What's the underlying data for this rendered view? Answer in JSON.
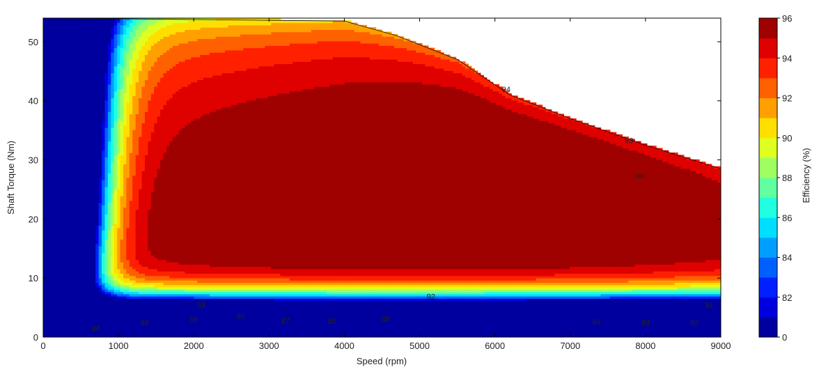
{
  "chart_data": {
    "type": "contour",
    "title": "",
    "xlabel": "Speed  (rpm)",
    "ylabel": "Shaft Torque (Nm)",
    "colorbar_label": "Efficiency (%)",
    "xlim": [
      0,
      9000
    ],
    "ylim": [
      0,
      54
    ],
    "x_ticks": [
      0,
      1000,
      2000,
      3000,
      4000,
      5000,
      6000,
      7000,
      8000,
      9000
    ],
    "y_ticks": [
      0,
      10,
      20,
      30,
      40,
      50
    ],
    "colorbar_ticks": [
      "0",
      "82",
      "84",
      "86",
      "88",
      "90",
      "92",
      "94",
      "96"
    ],
    "colormap": "jet",
    "max_torque_envelope": [
      [
        70,
        54
      ],
      [
        4000,
        53.5
      ],
      [
        4700,
        51
      ],
      [
        5500,
        47
      ],
      [
        6200,
        41
      ],
      [
        7000,
        37
      ],
      [
        8000,
        32.5
      ],
      [
        9000,
        28.5
      ]
    ],
    "efficiency_regions": [
      {
        "level": "94-96",
        "color": "#ff2200"
      },
      {
        "level": ">96",
        "color": "#a40000"
      }
    ],
    "contour_labels": [
      {
        "text": "84",
        "x": 700,
        "y": 1.5
      },
      {
        "text": "88",
        "x": 1350,
        "y": 2.5
      },
      {
        "text": "89",
        "x": 2000,
        "y": 3.0
      },
      {
        "text": "90",
        "x": 2620,
        "y": 3.6
      },
      {
        "text": "87",
        "x": 3220,
        "y": 2.8
      },
      {
        "text": "85",
        "x": 3830,
        "y": 2.7
      },
      {
        "text": "86",
        "x": 4550,
        "y": 3.1
      },
      {
        "text": "93",
        "x": 2100,
        "y": 5.5
      },
      {
        "text": "92",
        "x": 5150,
        "y": 6.9
      },
      {
        "text": "94",
        "x": 6150,
        "y": 42.0
      },
      {
        "text": "93",
        "x": 7780,
        "y": 33.3
      },
      {
        "text": "96",
        "x": 7930,
        "y": 27.3
      },
      {
        "text": "91",
        "x": 8850,
        "y": 5.5
      },
      {
        "text": "84",
        "x": 7350,
        "y": 2.6
      },
      {
        "text": "83",
        "x": 8000,
        "y": 2.5
      },
      {
        "text": "82",
        "x": 8650,
        "y": 2.4
      }
    ]
  }
}
